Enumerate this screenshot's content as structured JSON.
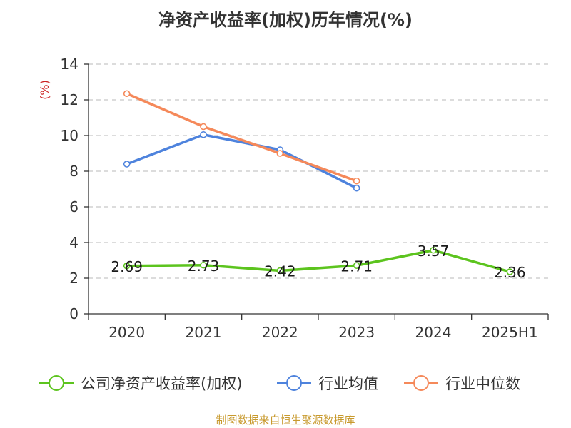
{
  "chart_data": {
    "type": "line",
    "title": "净资产收益率(加权)历年情况(%)",
    "ylabel": "(%)",
    "xlabel": "",
    "ylim": [
      0,
      14
    ],
    "yticks": [
      0,
      2,
      4,
      6,
      8,
      10,
      12,
      14
    ],
    "categories": [
      "2020",
      "2021",
      "2022",
      "2023",
      "2024",
      "2025H1"
    ],
    "grid": true,
    "legend_position": "bottom",
    "series": [
      {
        "name": "公司净资产收益率(加权)",
        "color": "#5cc41e",
        "values": [
          2.69,
          2.73,
          2.42,
          2.71,
          3.57,
          2.36
        ],
        "labels": [
          "2.69",
          "2.73",
          "2.42",
          "2.71",
          "3.57",
          "2.36"
        ]
      },
      {
        "name": "行业均值",
        "color": "#4e83dd",
        "values": [
          8.4,
          10.05,
          9.2,
          7.05,
          null,
          null
        ]
      },
      {
        "name": "行业中位数",
        "color": "#f5895a",
        "values": [
          12.35,
          10.5,
          9.0,
          7.45,
          null,
          null
        ]
      }
    ]
  },
  "footer": {
    "source": "制图数据来自恒生聚源数据库"
  }
}
